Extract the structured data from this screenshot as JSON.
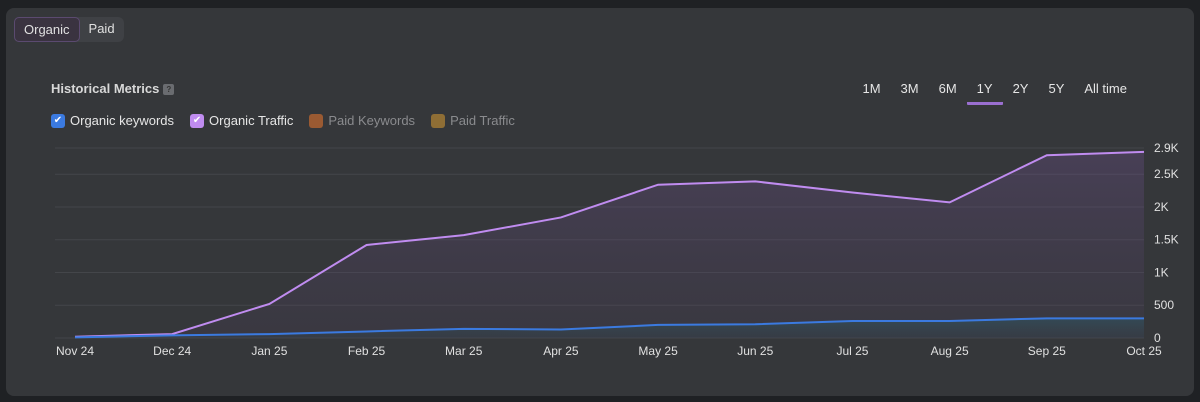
{
  "tabs": [
    "Organic",
    "Paid"
  ],
  "title": "Historical Metrics",
  "help": "?",
  "legend": [
    {
      "label": "Organic keywords",
      "color": "#3b7ae0",
      "checked": true
    },
    {
      "label": "Organic Traffic",
      "color": "#c08cf0",
      "checked": true
    },
    {
      "label": "Paid Keywords",
      "color": "#9a5a32",
      "checked": false
    },
    {
      "label": "Paid Traffic",
      "color": "#8f6e35",
      "checked": false
    }
  ],
  "ranges": [
    "1M",
    "3M",
    "6M",
    "1Y",
    "2Y",
    "5Y",
    "All time"
  ],
  "active_range": "1Y",
  "chart_data": {
    "type": "line",
    "categories": [
      "Nov 24",
      "Dec 24",
      "Jan 25",
      "Feb 25",
      "Mar 25",
      "Apr 25",
      "May 25",
      "Jun 25",
      "Jul 25",
      "Aug 25",
      "Sep 25",
      "Oct 25"
    ],
    "series": [
      {
        "name": "Organic Traffic",
        "color": "#c08cf0",
        "values": [
          20,
          60,
          520,
          1420,
          1570,
          1840,
          2340,
          2390,
          2220,
          2070,
          2790,
          2840
        ]
      },
      {
        "name": "Organic keywords",
        "color": "#3b7ae0",
        "values": [
          10,
          40,
          60,
          100,
          140,
          130,
          200,
          210,
          260,
          260,
          300,
          300
        ]
      }
    ],
    "yticks": [
      0,
      500,
      1000,
      1500,
      2000,
      2500,
      2900
    ],
    "ytick_labels": [
      "0",
      "500",
      "1K",
      "1.5K",
      "2K",
      "2.5K",
      "2.9K"
    ],
    "ylim": [
      0,
      2900
    ],
    "grid": true
  }
}
